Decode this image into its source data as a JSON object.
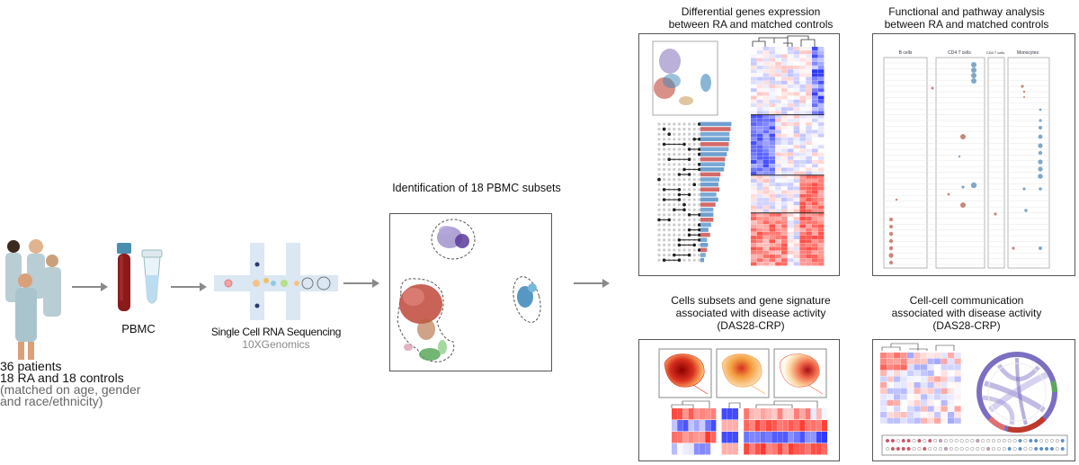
{
  "patients": {
    "count": "36 patients",
    "groups": "18 RA and 18 controls",
    "matched": "(matched  on age, gender",
    "race": " and race/ethnicity)"
  },
  "pbmc": {
    "label": "PBMC"
  },
  "sequencing": {
    "label": "Single Cell RNA Sequencing",
    "platform": "10XGenomics"
  },
  "identification": {
    "title": "Identification of 18 PBMC subsets"
  },
  "panels": {
    "dge": {
      "line1": "Differential genes expression",
      "line2": "between RA and matched controls"
    },
    "functional": {
      "line1": "Functional and pathway analysis",
      "line2": "between RA and matched controls"
    },
    "subsets": {
      "line1": "Cells subsets and gene signature",
      "line2": "associated with disease activity",
      "line3": "(DAS28-CRP)"
    },
    "communication": {
      "line1": "Cell-cell communication",
      "line2": "associated with disease activity",
      "line3": "(DAS28-CRP)"
    }
  },
  "dotplot": {
    "columns": [
      "B cells",
      "CD4 T cells",
      "CD8 T cells",
      "Monocytes"
    ]
  },
  "colors": {
    "arrow": "#8a8a8a",
    "tube_cap": "#4a8fb0",
    "blood": "#8b1a1a",
    "heat_red": "#c0392b",
    "heat_blue": "#2c3ea8",
    "umap_purple": "#6a4ba0",
    "umap_red": "#c0463a",
    "umap_blue": "#3a86b8",
    "umap_green": "#5aa85a"
  }
}
